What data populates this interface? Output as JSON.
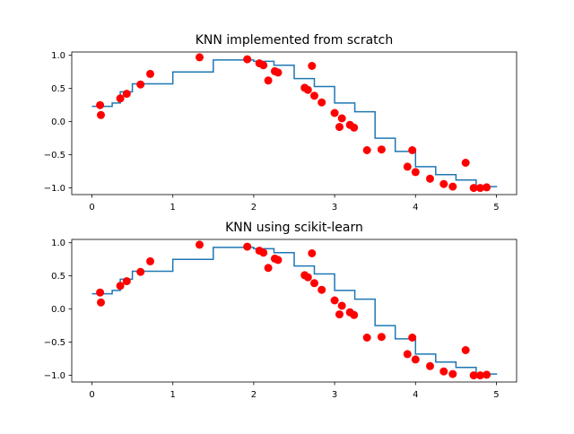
{
  "colors": {
    "line": "#1f77b4",
    "points": "#ff0000",
    "axis": "#000000"
  },
  "chart_data": [
    {
      "type": "scatter",
      "title": "KNN implemented from scratch",
      "xlabel": "",
      "ylabel": "",
      "xlim": [
        -0.25,
        5.25
      ],
      "ylim": [
        -1.1,
        1.05
      ],
      "xticks": [
        0,
        1,
        2,
        3,
        4,
        5
      ],
      "xtick_labels": [
        "0",
        "1",
        "2",
        "3",
        "4",
        "5"
      ],
      "yticks": [
        -1.0,
        -0.5,
        0.0,
        0.5,
        1.0
      ],
      "ytick_labels": [
        "−1.0",
        "−0.5",
        "0.0",
        "0.5",
        "1.0"
      ],
      "grid": false,
      "points": {
        "x": [
          0.1,
          0.11,
          0.35,
          0.43,
          0.6,
          0.72,
          1.33,
          1.92,
          2.07,
          2.12,
          2.18,
          2.26,
          2.3,
          2.63,
          2.67,
          2.72,
          2.75,
          2.84,
          3.0,
          3.06,
          3.09,
          3.19,
          3.24,
          3.4,
          3.58,
          3.9,
          3.96,
          4.0,
          4.18,
          4.35,
          4.46,
          4.62,
          4.72,
          4.8,
          4.88
        ],
        "y": [
          0.25,
          0.1,
          0.35,
          0.42,
          0.56,
          0.72,
          0.97,
          0.94,
          0.88,
          0.85,
          0.62,
          0.76,
          0.74,
          0.51,
          0.48,
          0.84,
          0.39,
          0.29,
          0.13,
          -0.08,
          0.05,
          -0.05,
          -0.09,
          -0.43,
          -0.42,
          -0.68,
          -0.43,
          -0.76,
          -0.86,
          -0.94,
          -0.98,
          -0.62,
          -1.0,
          -1.0,
          -0.99
        ]
      },
      "step": {
        "x": [
          0.0,
          0.25,
          0.35,
          0.5,
          0.75,
          1.0,
          1.25,
          1.5,
          1.75,
          2.0,
          2.25,
          2.5,
          2.75,
          3.0,
          3.25,
          3.5,
          3.75,
          4.0,
          4.25,
          4.5,
          4.75,
          5.0
        ],
        "y": [
          0.23,
          0.28,
          0.45,
          0.57,
          0.57,
          0.75,
          0.75,
          0.93,
          0.93,
          0.91,
          0.85,
          0.65,
          0.53,
          0.28,
          0.15,
          -0.25,
          -0.45,
          -0.68,
          -0.8,
          -0.88,
          -0.98,
          -0.99
        ]
      }
    },
    {
      "type": "scatter",
      "title": "KNN using scikit-learn",
      "xlabel": "",
      "ylabel": "",
      "xlim": [
        -0.25,
        5.25
      ],
      "ylim": [
        -1.1,
        1.05
      ],
      "xticks": [
        0,
        1,
        2,
        3,
        4,
        5
      ],
      "xtick_labels": [
        "0",
        "1",
        "2",
        "3",
        "4",
        "5"
      ],
      "yticks": [
        -1.0,
        -0.5,
        0.0,
        0.5,
        1.0
      ],
      "ytick_labels": [
        "−1.0",
        "−0.5",
        "0.0",
        "0.5",
        "1.0"
      ],
      "grid": false,
      "points": {
        "x": [
          0.1,
          0.11,
          0.35,
          0.43,
          0.6,
          0.72,
          1.33,
          1.92,
          2.07,
          2.12,
          2.18,
          2.26,
          2.3,
          2.63,
          2.67,
          2.72,
          2.75,
          2.84,
          3.0,
          3.06,
          3.09,
          3.19,
          3.24,
          3.4,
          3.58,
          3.9,
          3.96,
          4.0,
          4.18,
          4.35,
          4.46,
          4.62,
          4.72,
          4.8,
          4.88
        ],
        "y": [
          0.25,
          0.1,
          0.35,
          0.42,
          0.56,
          0.72,
          0.97,
          0.94,
          0.88,
          0.85,
          0.62,
          0.76,
          0.74,
          0.51,
          0.48,
          0.84,
          0.39,
          0.29,
          0.13,
          -0.08,
          0.05,
          -0.05,
          -0.09,
          -0.43,
          -0.42,
          -0.68,
          -0.43,
          -0.76,
          -0.86,
          -0.94,
          -0.98,
          -0.62,
          -1.0,
          -1.0,
          -0.99
        ]
      },
      "step": {
        "x": [
          0.0,
          0.25,
          0.35,
          0.5,
          0.75,
          1.0,
          1.25,
          1.5,
          1.75,
          2.0,
          2.25,
          2.5,
          2.75,
          3.0,
          3.25,
          3.5,
          3.75,
          4.0,
          4.25,
          4.5,
          4.75,
          5.0
        ],
        "y": [
          0.23,
          0.28,
          0.45,
          0.57,
          0.57,
          0.75,
          0.75,
          0.93,
          0.93,
          0.91,
          0.85,
          0.65,
          0.53,
          0.28,
          0.15,
          -0.25,
          -0.45,
          -0.68,
          -0.8,
          -0.88,
          -0.98,
          -0.99
        ]
      }
    }
  ]
}
